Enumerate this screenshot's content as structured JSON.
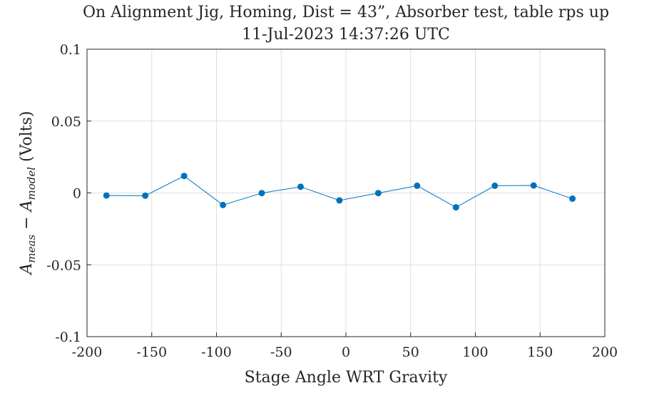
{
  "chart_data": {
    "type": "line",
    "title": "On Alignment Jig, Homing, Dist = 43”, Absorber test, table rps up",
    "subtitle": "11-Jul-2023 14:37:26 UTC",
    "xlabel": "Stage Angle WRT Gravity",
    "ylabel": "A_meas − A_model (Volts)",
    "xlim": [
      -200,
      200
    ],
    "ylim": [
      -0.1,
      0.1
    ],
    "xticks": [
      -200,
      -150,
      -100,
      -50,
      0,
      50,
      100,
      150,
      200
    ],
    "xtick_labels": [
      "-200",
      "-150",
      "-100",
      "-50",
      "0",
      "50",
      "100",
      "150",
      "200"
    ],
    "yticks": [
      -0.1,
      -0.05,
      0,
      0.05,
      0.1
    ],
    "ytick_labels": [
      "-0.1",
      "-0.05",
      "0",
      "0.05",
      "0.1"
    ],
    "grid": true,
    "series": [
      {
        "color": "#0072BD",
        "x": [
          -185,
          -155,
          -125,
          -95,
          -65,
          -35,
          -5,
          25,
          55,
          85,
          115,
          145,
          175
        ],
        "y": [
          -0.0018,
          -0.0019,
          0.0118,
          -0.0084,
          -0.0001,
          0.0043,
          -0.0052,
          -0.0001,
          0.005,
          -0.01,
          0.005,
          0.0052,
          -0.004
        ]
      }
    ]
  },
  "ylabel_parts": {
    "a1": "A",
    "sub1": "meas",
    "minus": " − ",
    "a2": "A",
    "sub2": "model",
    "unit": " (Volts)"
  }
}
